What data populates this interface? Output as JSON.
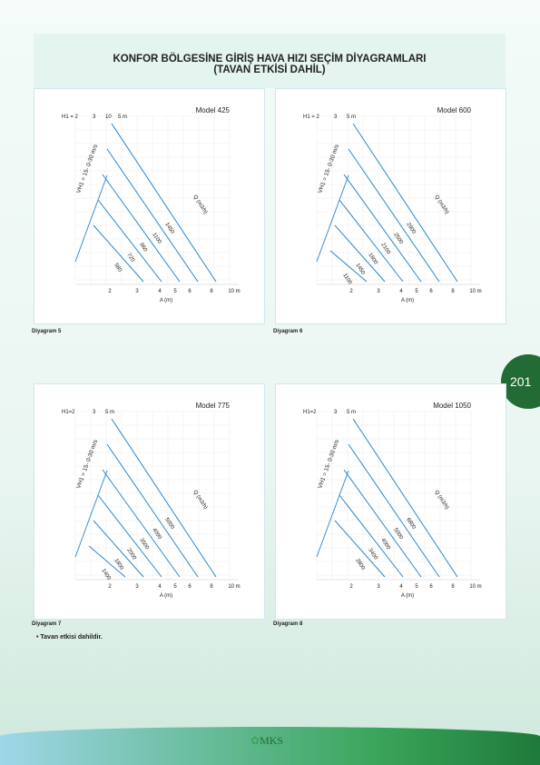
{
  "header": {
    "title_line1": "KONFOR BÖLGESİNE GİRİŞ HAVA HIZI SEÇİM DİYAGRAMLARI",
    "title_line2": "(TAVAN ETKİSİ DAHİL)"
  },
  "page_number": "201",
  "diagrams": [
    {
      "model": "Model 425",
      "caption": "Diyagram 5",
      "h1_labels": [
        "H1 = 2",
        "3",
        "10",
        "5 m"
      ],
      "velocity_label": "VH1 = 15- 0-30 m/s",
      "flow_label": "Q (m3/h)",
      "flows": [
        "1450",
        "1100",
        "860",
        "720",
        "580"
      ],
      "x_labels": [
        "2",
        "3",
        "4",
        "5",
        "6",
        "8",
        "10 m"
      ],
      "x_title": "A (m)"
    },
    {
      "model": "Model 600",
      "caption": "Diyagram 6",
      "h1_labels": [
        "H1 = 2",
        "3",
        "5 m"
      ],
      "velocity_label": "VH1 = 15- 0-30 m/s",
      "flow_label": "Q (m3/h)",
      "flows": [
        "2900",
        "2500",
        "2100",
        "1800",
        "1450",
        "1100"
      ],
      "x_labels": [
        "2",
        "3",
        "4",
        "5",
        "6",
        "8",
        "10 m"
      ],
      "x_title": "A (m)"
    },
    {
      "model": "Model 775",
      "caption": "Diyagram 7",
      "h1_labels": [
        "H1=2",
        "3",
        "5 m"
      ],
      "velocity_label": "VH1 = 15- 0-30 m/s",
      "flow_label": "Q (m3/h)",
      "flows": [
        "5000",
        "4000",
        "3500",
        "2000",
        "1800",
        "1400"
      ],
      "x_labels": [
        "2",
        "3",
        "4",
        "5",
        "6",
        "8",
        "10 m"
      ],
      "x_title": "A (m)"
    },
    {
      "model": "Model 1050",
      "caption": "Diyagram 8",
      "h1_labels": [
        "H1=2",
        "3",
        "5 m"
      ],
      "velocity_label": "VH1 = 15- 0-30 m/s",
      "flow_label": "Q (m3/h)",
      "flows": [
        "6800",
        "5000",
        "4000",
        "3400",
        "2800"
      ],
      "x_labels": [
        "2",
        "3",
        "4",
        "5",
        "6",
        "8",
        "10 m"
      ],
      "x_title": "A (m)"
    }
  ],
  "note": "Tavan etkisi dahildir.",
  "logo": "MKS"
}
